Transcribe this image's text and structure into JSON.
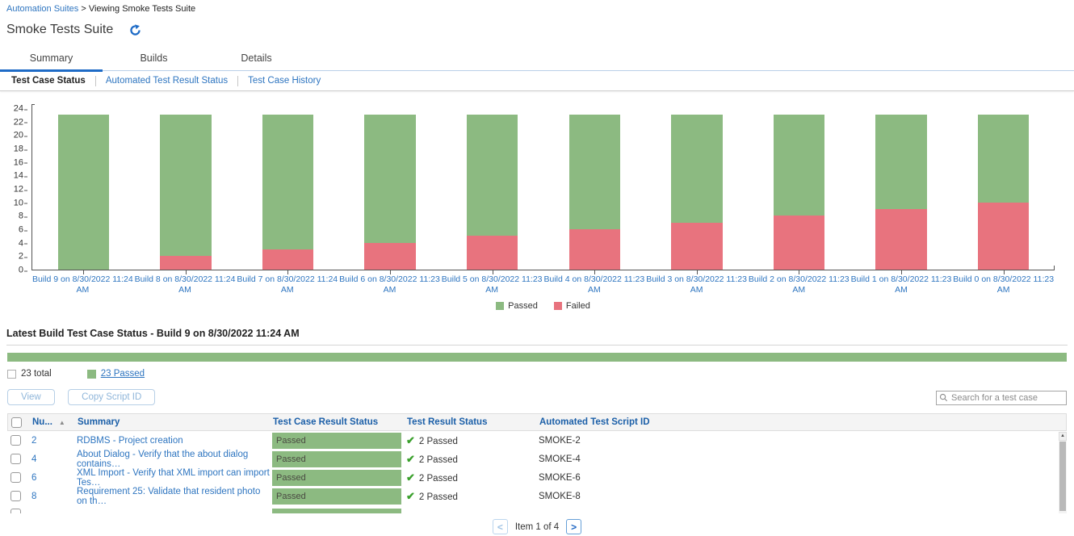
{
  "colors": {
    "accent_blue": "#1e6bc6",
    "link_blue": "#2e75c0",
    "header_blue": "#1b5fa8",
    "passed_green": "#8cba81",
    "failed_red": "#e8737e",
    "check_green": "#3aa02c"
  },
  "icons": {
    "refresh": "refresh-icon",
    "search": "search-icon",
    "sort_asc": "▲",
    "check": "✔",
    "scrollbar_up": "▲"
  },
  "breadcrumb": {
    "link": "Automation Suites",
    "separator": ">",
    "current": "Viewing Smoke Tests Suite"
  },
  "page_title": "Smoke Tests Suite",
  "tabs": [
    {
      "label": "Summary",
      "active": true
    },
    {
      "label": "Builds",
      "active": false
    },
    {
      "label": "Details",
      "active": false
    }
  ],
  "subtabs": [
    {
      "label": "Test Case Status",
      "active": true
    },
    {
      "label": "Automated Test Result Status",
      "active": false
    },
    {
      "label": "Test Case History",
      "active": false
    }
  ],
  "chart_data": {
    "type": "bar",
    "stacked": true,
    "categories": [
      "Build 9 on 8/30/2022 11:24 AM",
      "Build 8 on 8/30/2022 11:24 AM",
      "Build 7 on 8/30/2022 11:24 AM",
      "Build 6 on 8/30/2022 11:23 AM",
      "Build 5 on 8/30/2022 11:23 AM",
      "Build 4 on 8/30/2022 11:23 AM",
      "Build 3 on 8/30/2022 11:23 AM",
      "Build 2 on 8/30/2022 11:23 AM",
      "Build 1 on 8/30/2022 11:23 AM",
      "Build 0 on 8/30/2022 11:23 AM"
    ],
    "series": [
      {
        "name": "Passed",
        "color": "#8cba81",
        "values": [
          23,
          21,
          20,
          19,
          18,
          17,
          16,
          15,
          14,
          13
        ]
      },
      {
        "name": "Failed",
        "color": "#e8737e",
        "values": [
          0,
          2,
          3,
          4,
          5,
          6,
          7,
          8,
          9,
          10
        ]
      }
    ],
    "ylim": [
      0,
      24
    ],
    "ytick_step": 2,
    "grid": false,
    "legend_position": "bottom"
  },
  "latest_build": {
    "heading": "Latest Build Test Case Status - Build 9 on 8/30/2022 11:24 AM",
    "progress_segments": [
      {
        "label": "Passed",
        "color": "#8cba81",
        "fraction": 1
      }
    ],
    "total_label": "23 total",
    "passed_label": "23 Passed"
  },
  "toolbar": {
    "view_label": "View",
    "copy_label": "Copy Script ID",
    "search_placeholder": "Search for a test case"
  },
  "table": {
    "columns": [
      "Nu...",
      "Summary",
      "Test Case Result Status",
      "Test Result Status",
      "Automated Test Script ID"
    ],
    "rows": [
      {
        "number": "2",
        "summary": "RDBMS - Project creation",
        "case_status": "Passed",
        "result_status": "2 Passed",
        "script_id": "SMOKE-2"
      },
      {
        "number": "4",
        "summary": "About Dialog - Verify that the about dialog contains…",
        "case_status": "Passed",
        "result_status": "2 Passed",
        "script_id": "SMOKE-4"
      },
      {
        "number": "6",
        "summary": "XML Import - Verify that XML import can import Tes…",
        "case_status": "Passed",
        "result_status": "2 Passed",
        "script_id": "SMOKE-6"
      },
      {
        "number": "8",
        "summary": "Requirement 25: Validate that resident photo on th…",
        "case_status": "Passed",
        "result_status": "2 Passed",
        "script_id": "SMOKE-8"
      }
    ],
    "partial_row_visible": true
  },
  "pagination": {
    "prev_label": "<",
    "label": "Item 1 of 4",
    "next_label": ">"
  }
}
